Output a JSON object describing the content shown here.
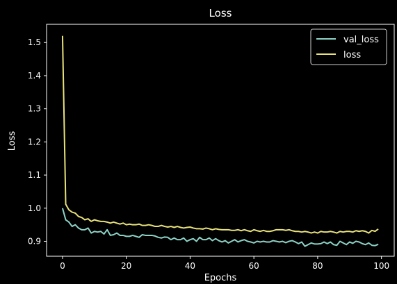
{
  "chart_data": {
    "type": "line",
    "title": "Loss",
    "xlabel": "Epochs",
    "ylabel": "Loss",
    "xlim": [
      -5,
      104
    ],
    "ylim": [
      0.855,
      1.555
    ],
    "xticks": [
      "0",
      "20",
      "40",
      "60",
      "80",
      "100"
    ],
    "yticks": [
      "0.9",
      "1.0",
      "1.1",
      "1.2",
      "1.3",
      "1.4",
      "1.5"
    ],
    "grid": false,
    "legend_position": "upper-right",
    "colors": {
      "background": "#000000",
      "axes": "#ffffff",
      "val_loss": "#8dd3c7",
      "loss": "#e8e27a"
    },
    "series": [
      {
        "name": "val_loss",
        "color": "#8dd3c7",
        "x": [
          0,
          1,
          2,
          3,
          4,
          5,
          6,
          7,
          8,
          9,
          10,
          11,
          12,
          13,
          14,
          15,
          16,
          17,
          18,
          19,
          20,
          21,
          22,
          23,
          24,
          25,
          26,
          27,
          28,
          29,
          30,
          31,
          32,
          33,
          34,
          35,
          36,
          37,
          38,
          39,
          40,
          41,
          42,
          43,
          44,
          45,
          46,
          47,
          48,
          49,
          50,
          51,
          52,
          53,
          54,
          55,
          56,
          57,
          58,
          59,
          60,
          61,
          62,
          63,
          64,
          65,
          66,
          67,
          68,
          69,
          70,
          71,
          72,
          73,
          74,
          75,
          76,
          77,
          78,
          79,
          80,
          81,
          82,
          83,
          84,
          85,
          86,
          87,
          88,
          89,
          90,
          91,
          92,
          93,
          94,
          95,
          96,
          97,
          98,
          99
        ],
        "values": [
          1.0,
          0.965,
          0.958,
          0.945,
          0.95,
          0.94,
          0.935,
          0.935,
          0.94,
          0.925,
          0.93,
          0.928,
          0.93,
          0.922,
          0.935,
          0.918,
          0.92,
          0.925,
          0.918,
          0.918,
          0.915,
          0.915,
          0.918,
          0.915,
          0.912,
          0.92,
          0.918,
          0.918,
          0.918,
          0.916,
          0.912,
          0.91,
          0.913,
          0.912,
          0.905,
          0.91,
          0.905,
          0.905,
          0.91,
          0.9,
          0.905,
          0.908,
          0.9,
          0.912,
          0.905,
          0.905,
          0.91,
          0.902,
          0.908,
          0.902,
          0.898,
          0.902,
          0.895,
          0.9,
          0.905,
          0.898,
          0.902,
          0.905,
          0.9,
          0.898,
          0.895,
          0.9,
          0.898,
          0.9,
          0.898,
          0.898,
          0.902,
          0.9,
          0.898,
          0.9,
          0.896,
          0.9,
          0.902,
          0.898,
          0.893,
          0.898,
          0.885,
          0.89,
          0.895,
          0.892,
          0.892,
          0.893,
          0.898,
          0.893,
          0.898,
          0.89,
          0.888,
          0.9,
          0.895,
          0.89,
          0.898,
          0.894,
          0.9,
          0.898,
          0.893,
          0.89,
          0.895,
          0.888,
          0.887,
          0.891
        ]
      },
      {
        "name": "loss",
        "color": "#e8e27a",
        "x": [
          0,
          1,
          2,
          3,
          4,
          5,
          6,
          7,
          8,
          9,
          10,
          11,
          12,
          13,
          14,
          15,
          16,
          17,
          18,
          19,
          20,
          21,
          22,
          23,
          24,
          25,
          26,
          27,
          28,
          29,
          30,
          31,
          32,
          33,
          34,
          35,
          36,
          37,
          38,
          39,
          40,
          41,
          42,
          43,
          44,
          45,
          46,
          47,
          48,
          49,
          50,
          51,
          52,
          53,
          54,
          55,
          56,
          57,
          58,
          59,
          60,
          61,
          62,
          63,
          64,
          65,
          66,
          67,
          68,
          69,
          70,
          71,
          72,
          73,
          74,
          75,
          76,
          77,
          78,
          79,
          80,
          81,
          82,
          83,
          84,
          85,
          86,
          87,
          88,
          89,
          90,
          91,
          92,
          93,
          94,
          95,
          96,
          97,
          98,
          99
        ],
        "values": [
          1.52,
          1.012,
          0.995,
          0.988,
          0.985,
          0.975,
          0.972,
          0.965,
          0.968,
          0.96,
          0.965,
          0.962,
          0.96,
          0.96,
          0.958,
          0.955,
          0.958,
          0.955,
          0.952,
          0.955,
          0.95,
          0.952,
          0.95,
          0.95,
          0.952,
          0.948,
          0.948,
          0.95,
          0.948,
          0.945,
          0.945,
          0.948,
          0.945,
          0.943,
          0.945,
          0.942,
          0.945,
          0.942,
          0.94,
          0.942,
          0.943,
          0.94,
          0.938,
          0.938,
          0.937,
          0.94,
          0.938,
          0.935,
          0.938,
          0.936,
          0.935,
          0.935,
          0.935,
          0.933,
          0.933,
          0.935,
          0.932,
          0.935,
          0.932,
          0.93,
          0.935,
          0.932,
          0.93,
          0.933,
          0.93,
          0.93,
          0.932,
          0.935,
          0.935,
          0.935,
          0.933,
          0.935,
          0.932,
          0.93,
          0.93,
          0.928,
          0.93,
          0.928,
          0.925,
          0.928,
          0.925,
          0.93,
          0.928,
          0.928,
          0.93,
          0.928,
          0.925,
          0.93,
          0.928,
          0.93,
          0.93,
          0.928,
          0.932,
          0.93,
          0.932,
          0.93,
          0.925,
          0.933,
          0.93,
          0.937
        ]
      }
    ]
  }
}
